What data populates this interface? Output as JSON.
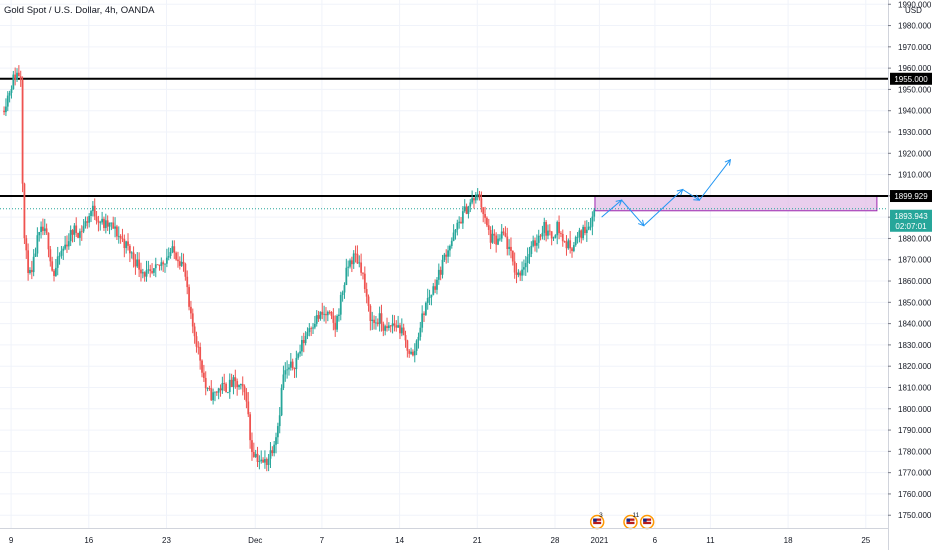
{
  "chart_data": {
    "type": "candlestick",
    "title": "Gold Spot / U.S. Dollar, 4h, OANDA",
    "currency": "USD",
    "y_ticks": [
      1750,
      1760,
      1770,
      1780,
      1790,
      1800,
      1810,
      1820,
      1830,
      1840,
      1850,
      1860,
      1870,
      1880,
      1890,
      1900,
      1910,
      1920,
      1930,
      1940,
      1950,
      1960,
      1970,
      1980,
      1990
    ],
    "y_tick_labels": [
      "1750.000",
      "1760.000",
      "1770.000",
      "1780.000",
      "1790.000",
      "1800.000",
      "1810.000",
      "1820.000",
      "1830.000",
      "1840.000",
      "1850.000",
      "1860.000",
      "1870.000",
      "1880.000",
      "1890.000",
      "1900.000",
      "1910.000",
      "1920.000",
      "1930.000",
      "1940.000",
      "1950.000",
      "1960.000",
      "1970.000",
      "1980.000",
      "1990.000"
    ],
    "ylim": [
      1744,
      1992
    ],
    "x_ticks": [
      {
        "label": "9",
        "day": 0
      },
      {
        "label": "16",
        "day": 7
      },
      {
        "label": "23",
        "day": 14
      },
      {
        "label": "Dec",
        "day": 22
      },
      {
        "label": "7",
        "day": 28
      },
      {
        "label": "14",
        "day": 35
      },
      {
        "label": "21",
        "day": 42
      },
      {
        "label": "28",
        "day": 49
      },
      {
        "label": "2021",
        "day": 53
      },
      {
        "label": "6",
        "day": 58
      },
      {
        "label": "11",
        "day": 63
      },
      {
        "label": "18",
        "day": 70
      },
      {
        "label": "25",
        "day": 77
      }
    ],
    "xlim_days": [
      -1,
      79
    ],
    "price_path": [
      [
        -0.8,
        1940
      ],
      [
        -0.3,
        1947
      ],
      [
        0.2,
        1955
      ],
      [
        0.6,
        1958
      ],
      [
        0.9,
        1956
      ],
      [
        1.1,
        1885
      ],
      [
        1.4,
        1870
      ],
      [
        1.8,
        1860
      ],
      [
        2.3,
        1878
      ],
      [
        2.8,
        1884
      ],
      [
        3.3,
        1880
      ],
      [
        3.8,
        1862
      ],
      [
        4.4,
        1872
      ],
      [
        5,
        1878
      ],
      [
        5.6,
        1884
      ],
      [
        6.2,
        1883
      ],
      [
        6.8,
        1888
      ],
      [
        7.3,
        1894
      ],
      [
        7.9,
        1889
      ],
      [
        8.4,
        1886
      ],
      [
        9,
        1886
      ],
      [
        9.6,
        1882
      ],
      [
        10.2,
        1878
      ],
      [
        10.8,
        1873
      ],
      [
        11.4,
        1868
      ],
      [
        12,
        1864
      ],
      [
        12.6,
        1862
      ],
      [
        13.2,
        1866
      ],
      [
        13.8,
        1870
      ],
      [
        14.4,
        1874
      ],
      [
        15,
        1872
      ],
      [
        15.6,
        1866
      ],
      [
        16.1,
        1844
      ],
      [
        16.6,
        1834
      ],
      [
        17.1,
        1822
      ],
      [
        17.6,
        1808
      ],
      [
        18.2,
        1806
      ],
      [
        18.8,
        1810
      ],
      [
        19.4,
        1810
      ],
      [
        20,
        1812
      ],
      [
        20.6,
        1810
      ],
      [
        21.2,
        1806
      ],
      [
        21.6,
        1782
      ],
      [
        22.1,
        1778
      ],
      [
        22.6,
        1774
      ],
      [
        23.1,
        1776
      ],
      [
        23.6,
        1783
      ],
      [
        24.1,
        1794
      ],
      [
        24.5,
        1816
      ],
      [
        25,
        1818
      ],
      [
        25.6,
        1822
      ],
      [
        26.2,
        1830
      ],
      [
        26.8,
        1838
      ],
      [
        27.4,
        1842
      ],
      [
        28,
        1844
      ],
      [
        28.6,
        1844
      ],
      [
        29.2,
        1838
      ],
      [
        29.8,
        1854
      ],
      [
        30.4,
        1868
      ],
      [
        31,
        1872
      ],
      [
        31.6,
        1866
      ],
      [
        32.1,
        1848
      ],
      [
        32.6,
        1840
      ],
      [
        33.2,
        1842
      ],
      [
        33.8,
        1836
      ],
      [
        34.4,
        1840
      ],
      [
        35,
        1838
      ],
      [
        35.6,
        1830
      ],
      [
        36.2,
        1824
      ],
      [
        36.8,
        1838
      ],
      [
        37.4,
        1850
      ],
      [
        38,
        1856
      ],
      [
        38.6,
        1864
      ],
      [
        39.2,
        1874
      ],
      [
        39.8,
        1880
      ],
      [
        40.4,
        1888
      ],
      [
        41,
        1894
      ],
      [
        41.6,
        1898
      ],
      [
        42.2,
        1900
      ],
      [
        42.7,
        1888
      ],
      [
        43.2,
        1880
      ],
      [
        43.8,
        1878
      ],
      [
        44.4,
        1882
      ],
      [
        45,
        1872
      ],
      [
        45.6,
        1862
      ],
      [
        46.2,
        1868
      ],
      [
        46.8,
        1874
      ],
      [
        47.4,
        1880
      ],
      [
        48,
        1886
      ],
      [
        48.6,
        1880
      ],
      [
        49.2,
        1886
      ],
      [
        49.8,
        1878
      ],
      [
        50.4,
        1876
      ],
      [
        51,
        1880
      ],
      [
        51.6,
        1884
      ],
      [
        52.2,
        1888
      ],
      [
        52.6,
        1893.943
      ]
    ],
    "levels": [
      {
        "label": "1955.000",
        "price": 1955.0
      },
      {
        "label": "1899.929",
        "price": 1899.929
      }
    ],
    "last_price": {
      "label": "1893.943",
      "price": 1893.943,
      "countdown": "02:07:01"
    },
    "supply_zone": {
      "day_start": 52.6,
      "day_end": 78,
      "price_low": 1893.0,
      "price_high": 1899.929
    },
    "projection_path": [
      [
        53.2,
        1890
      ],
      [
        55.0,
        1898
      ],
      [
        57.0,
        1886
      ],
      [
        60.5,
        1903
      ],
      [
        62.0,
        1898
      ],
      [
        64.8,
        1917
      ]
    ],
    "event_markers": [
      {
        "day": 52.8,
        "count": "3"
      },
      {
        "day": 55.8,
        "count": "11"
      },
      {
        "day": 57.3,
        "count": ""
      }
    ],
    "colors": {
      "up": "#26a69a",
      "down": "#ef5350",
      "level": "#000000",
      "zone_fill": "#e1bee7",
      "zone_border": "#9c27b0",
      "projection": "#2196f3",
      "last_price": "#26a69a",
      "grid": "#f0f3fa"
    }
  }
}
